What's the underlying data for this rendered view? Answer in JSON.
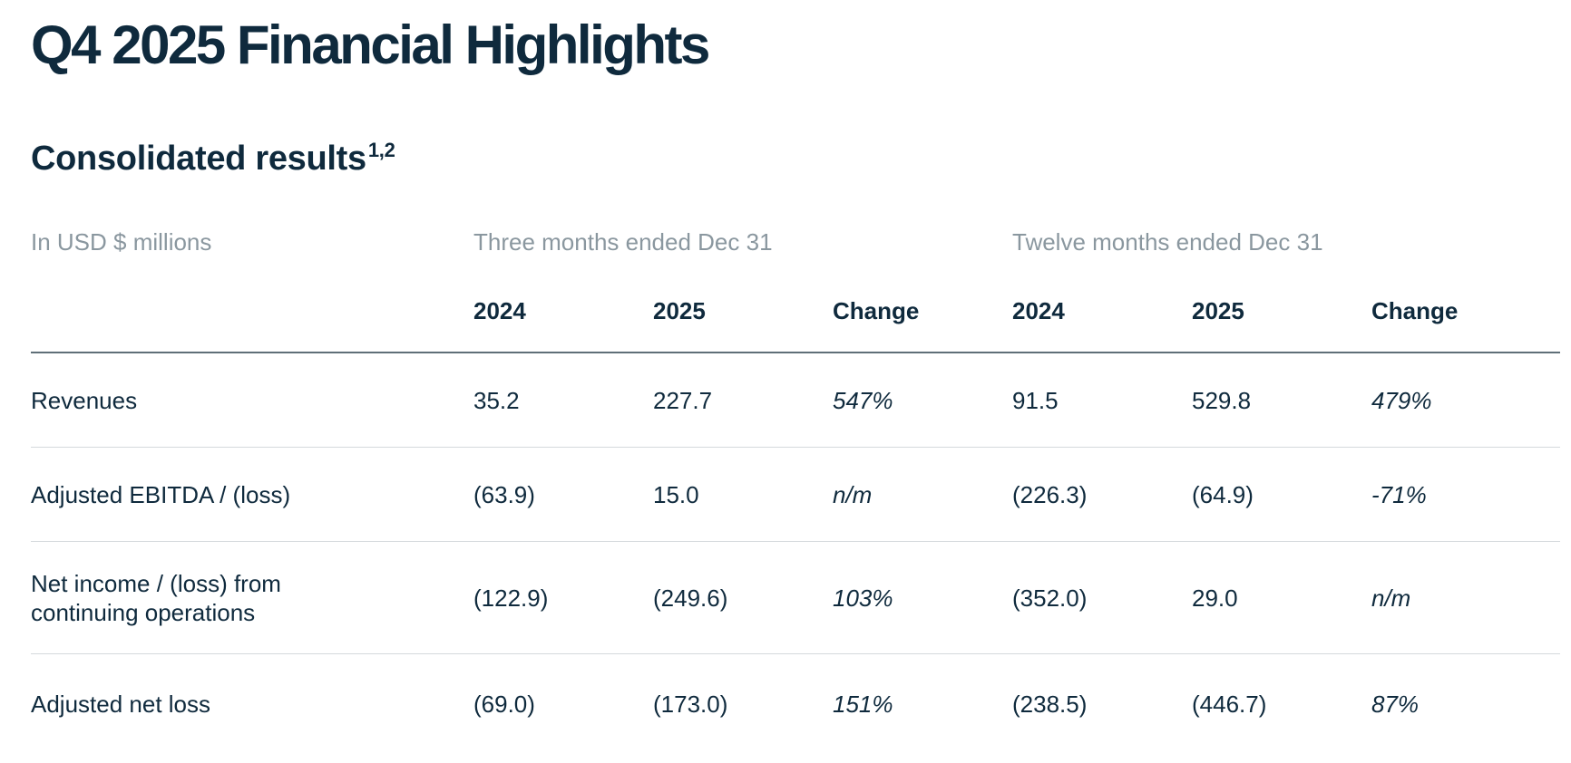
{
  "header": {
    "title": "Q4 2025 Financial Highlights"
  },
  "section": {
    "title": "Consolidated results",
    "footnote": "1,2"
  },
  "table": {
    "unit_label": "In USD $ millions",
    "groups": [
      "Three months ended Dec 31",
      "Twelve months ended Dec 31"
    ],
    "columns": [
      "2024",
      "2025",
      "Change",
      "2024",
      "2025",
      "Change"
    ],
    "rows": [
      {
        "label": "Revenues",
        "values": [
          "35.2",
          "227.7",
          "547%",
          "91.5",
          "529.8",
          "479%"
        ]
      },
      {
        "label": "Adjusted EBITDA / (loss)",
        "values": [
          "(63.9)",
          "15.0",
          "n/m",
          "(226.3)",
          "(64.9)",
          "-71%"
        ]
      },
      {
        "label": "Net income / (loss) from continuing operations",
        "values": [
          "(122.9)",
          "(249.6)",
          "103%",
          "(352.0)",
          "29.0",
          "n/m"
        ]
      },
      {
        "label": "Adjusted net loss",
        "values": [
          "(69.0)",
          "(173.0)",
          "151%",
          "(238.5)",
          "(446.7)",
          "87%"
        ]
      }
    ]
  }
}
